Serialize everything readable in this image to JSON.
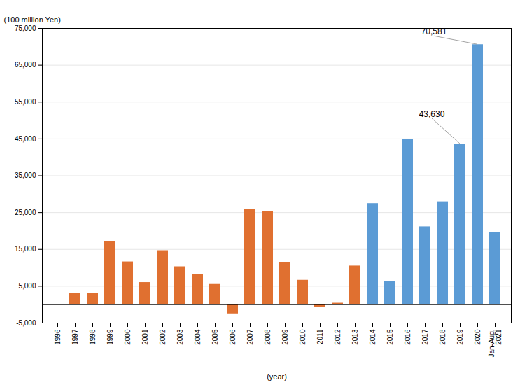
{
  "chart_data": {
    "type": "bar",
    "categories": [
      "1996",
      "1997",
      "1998",
      "1999",
      "2000",
      "2001",
      "2002",
      "2003",
      "2004",
      "2005",
      "2006",
      "2007",
      "2008",
      "2009",
      "2010",
      "2011",
      "2012",
      "2013",
      "2014",
      "2015",
      "2016",
      "2017",
      "2018",
      "2019",
      "2020",
      "Jan-Aug,\n2021"
    ],
    "values": [
      -31,
      3045,
      3169,
      17179,
      11616,
      6010,
      14666,
      10296,
      8207,
      5502,
      -2486,
      25947,
      25303,
      11478,
      6636,
      -693,
      407,
      10501,
      27455,
      6272,
      44915,
      21144,
      27949,
      43630,
      70581,
      19517
    ],
    "colors": [
      "#E07030",
      "#E07030",
      "#E07030",
      "#E07030",
      "#E07030",
      "#E07030",
      "#E07030",
      "#E07030",
      "#E07030",
      "#E07030",
      "#E07030",
      "#E07030",
      "#E07030",
      "#E07030",
      "#E07030",
      "#E07030",
      "#E07030",
      "#E07030",
      "#5B9BD5",
      "#5B9BD5",
      "#5B9BD5",
      "#5B9BD5",
      "#5B9BD5",
      "#5B9BD5",
      "#5B9BD5",
      "#5B9BD5"
    ],
    "ylabel": "(100 million Yen)",
    "xlabel": "(year)",
    "ylim": [
      -5000,
      75000
    ],
    "yticks": [
      {
        "value": -5000,
        "label": "-5,000"
      },
      {
        "value": 5000,
        "label": "5,000"
      },
      {
        "value": 15000,
        "label": "15,000"
      },
      {
        "value": 25000,
        "label": "25,000"
      },
      {
        "value": 35000,
        "label": "35,000"
      },
      {
        "value": 45000,
        "label": "45,000"
      },
      {
        "value": 55000,
        "label": "55,000"
      },
      {
        "value": 65000,
        "label": "65,000"
      },
      {
        "value": 75000,
        "label": "75,000"
      }
    ],
    "grid": true,
    "annotations": [
      {
        "label": "43,630",
        "category": "2019",
        "value": 43630
      },
      {
        "label": "70,581",
        "category": "2020",
        "value": 70581
      }
    ]
  }
}
